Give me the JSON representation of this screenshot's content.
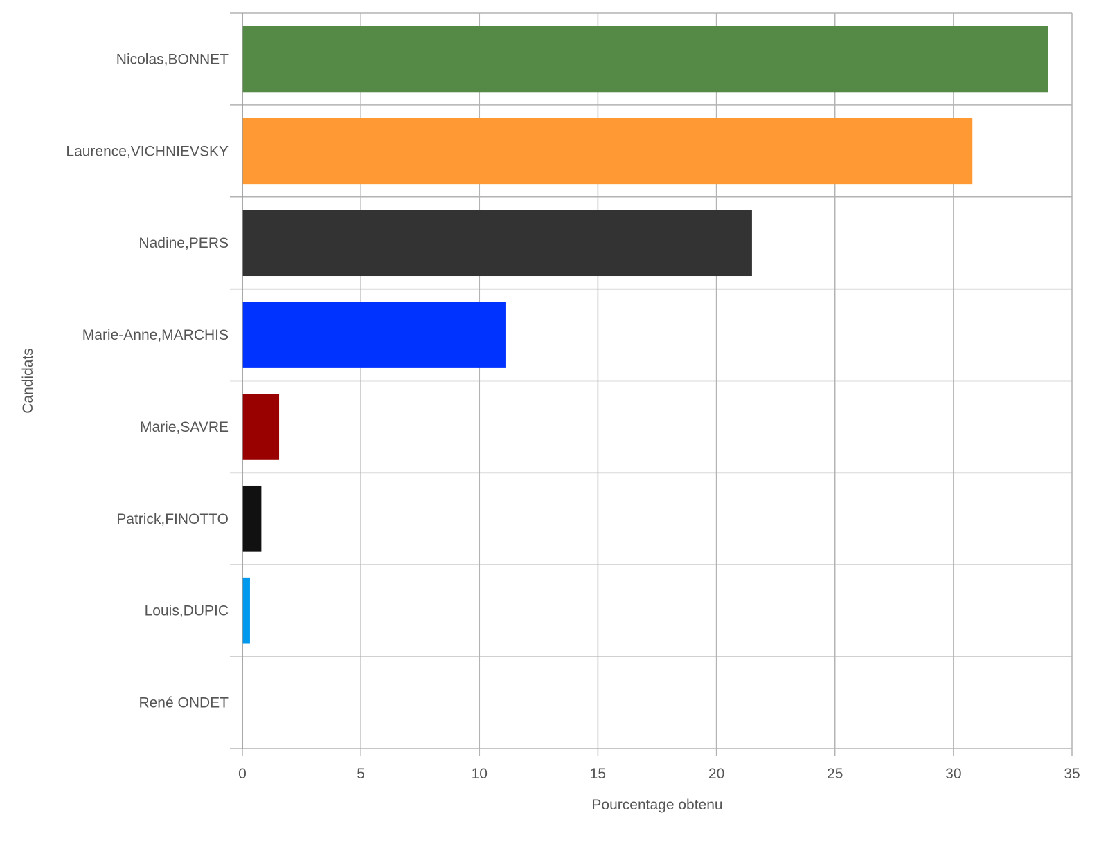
{
  "chart_data": {
    "type": "bar",
    "orientation": "horizontal",
    "title": "",
    "xlabel": "Pourcentage obtenu",
    "ylabel": "Candidats",
    "xlim": [
      0,
      35
    ],
    "xticks": [
      "0",
      "5",
      "10",
      "15",
      "20",
      "25",
      "30",
      "35"
    ],
    "grid": true,
    "categories": [
      "Nicolas,BONNET",
      "Laurence,VICHNIEVSKY",
      "Nadine,PERS",
      "Marie-Anne,MARCHIS",
      "Marie,SAVRE",
      "Patrick,FINOTTO",
      "Louis,DUPIC",
      "René ONDET"
    ],
    "values": [
      34.0,
      30.8,
      21.5,
      11.1,
      1.55,
      0.8,
      0.32,
      0.0
    ],
    "colors": [
      "#548a45",
      "#ff9933",
      "#333333",
      "#0033ff",
      "#990000",
      "#111111",
      "#0099ee",
      "#cccccc"
    ]
  }
}
